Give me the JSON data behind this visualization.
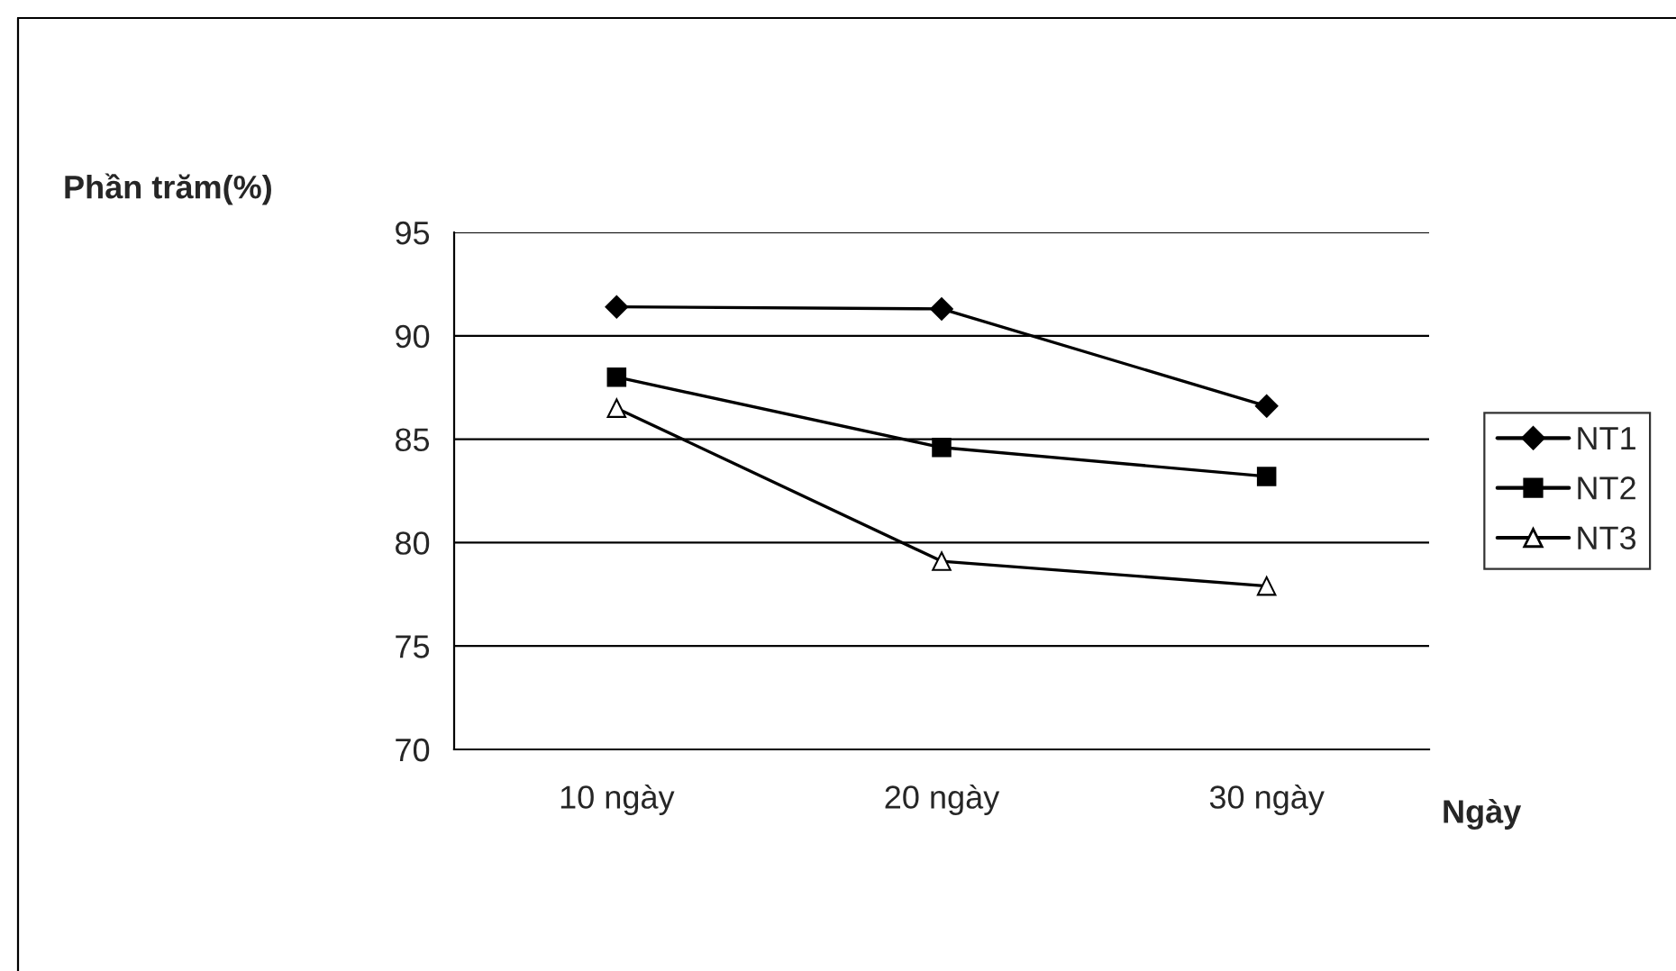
{
  "chart_data": {
    "type": "line",
    "xlabel": "Ngày",
    "ylabel": "Phần trăm(%)",
    "categories": [
      "10 ngày",
      "20 ngày",
      "30 ngày"
    ],
    "series": [
      {
        "name": "NT1",
        "color": "#000000",
        "marker": "diamond",
        "values": [
          91.4,
          91.3,
          86.6
        ]
      },
      {
        "name": "NT2",
        "color": "#000000",
        "marker": "square",
        "values": [
          88.0,
          84.6,
          83.2
        ]
      },
      {
        "name": "NT3",
        "color": "#000000",
        "marker": "triangle",
        "values": [
          86.5,
          79.1,
          77.9
        ]
      }
    ],
    "ylim": [
      70,
      95
    ],
    "yticks": [
      70,
      75,
      80,
      85,
      90,
      95
    ],
    "grid": "y",
    "legend": "right",
    "line_style": "solid"
  }
}
